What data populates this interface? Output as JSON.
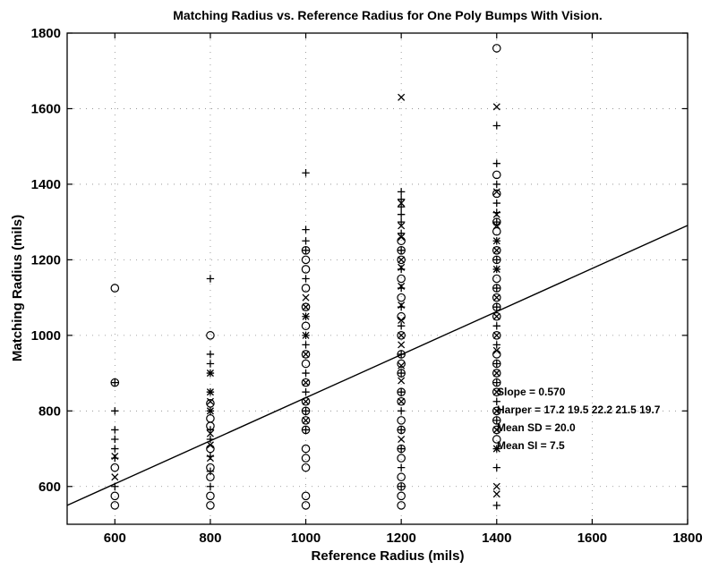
{
  "chart_data": {
    "type": "scatter",
    "title": "Matching Radius vs. Reference Radius for One Poly Bumps With Vision.",
    "xlabel": "Reference Radius (mils)",
    "ylabel": "Matching Radius (mils)",
    "xlim": [
      500,
      1800
    ],
    "ylim": [
      500,
      1800
    ],
    "xticks": [
      600,
      800,
      1000,
      1200,
      1400,
      1600,
      1800
    ],
    "yticks": [
      600,
      800,
      1000,
      1200,
      1400,
      1600,
      1800
    ],
    "grid": "dotted",
    "legend": "none",
    "fit_line": {
      "slope": 0.57,
      "intercept": 265,
      "x_range": [
        500,
        1800
      ]
    },
    "annotations": [
      "Slope = 0.570",
      "Harper = 17.2 19.5 22.2 21.5 19.7",
      "Mean SD = 20.0",
      "Mean SI = 7.5"
    ],
    "series": [
      {
        "marker": "circle",
        "points": [
          [
            600,
            1125
          ],
          [
            600,
            875
          ],
          [
            600,
            650
          ],
          [
            600,
            575
          ],
          [
            600,
            550
          ],
          [
            800,
            1000
          ],
          [
            800,
            820
          ],
          [
            800,
            780
          ],
          [
            800,
            760
          ],
          [
            800,
            700
          ],
          [
            800,
            650
          ],
          [
            800,
            625
          ],
          [
            800,
            575
          ],
          [
            800,
            550
          ],
          [
            1000,
            1225
          ],
          [
            1000,
            1200
          ],
          [
            1000,
            1175
          ],
          [
            1000,
            1125
          ],
          [
            1000,
            1075
          ],
          [
            1000,
            1025
          ],
          [
            1000,
            950
          ],
          [
            1000,
            925
          ],
          [
            1000,
            875
          ],
          [
            1000,
            825
          ],
          [
            1000,
            800
          ],
          [
            1000,
            775
          ],
          [
            1000,
            750
          ],
          [
            1000,
            700
          ],
          [
            1000,
            675
          ],
          [
            1000,
            650
          ],
          [
            1000,
            575
          ],
          [
            1000,
            550
          ],
          [
            1200,
            1250
          ],
          [
            1200,
            1225
          ],
          [
            1200,
            1200
          ],
          [
            1200,
            1150
          ],
          [
            1200,
            1100
          ],
          [
            1200,
            1050
          ],
          [
            1200,
            1000
          ],
          [
            1200,
            950
          ],
          [
            1200,
            925
          ],
          [
            1200,
            900
          ],
          [
            1200,
            850
          ],
          [
            1200,
            825
          ],
          [
            1200,
            775
          ],
          [
            1200,
            750
          ],
          [
            1200,
            700
          ],
          [
            1200,
            675
          ],
          [
            1200,
            625
          ],
          [
            1200,
            600
          ],
          [
            1200,
            575
          ],
          [
            1200,
            550
          ],
          [
            1400,
            1760
          ],
          [
            1400,
            1425
          ],
          [
            1400,
            1375
          ],
          [
            1400,
            1300
          ],
          [
            1400,
            1275
          ],
          [
            1400,
            1225
          ],
          [
            1400,
            1200
          ],
          [
            1400,
            1150
          ],
          [
            1400,
            1125
          ],
          [
            1400,
            1100
          ],
          [
            1400,
            1075
          ],
          [
            1400,
            1050
          ],
          [
            1400,
            1000
          ],
          [
            1400,
            950
          ],
          [
            1400,
            925
          ],
          [
            1400,
            900
          ],
          [
            1400,
            875
          ],
          [
            1400,
            850
          ],
          [
            1400,
            800
          ],
          [
            1400,
            775
          ],
          [
            1400,
            750
          ],
          [
            1400,
            725
          ]
        ]
      },
      {
        "marker": "plus",
        "points": [
          [
            600,
            875
          ],
          [
            600,
            800
          ],
          [
            600,
            750
          ],
          [
            600,
            725
          ],
          [
            600,
            700
          ],
          [
            600,
            675
          ],
          [
            600,
            600
          ],
          [
            800,
            1150
          ],
          [
            800,
            950
          ],
          [
            800,
            925
          ],
          [
            800,
            900
          ],
          [
            800,
            850
          ],
          [
            800,
            800
          ],
          [
            800,
            750
          ],
          [
            800,
            725
          ],
          [
            800,
            680
          ],
          [
            800,
            640
          ],
          [
            800,
            600
          ],
          [
            1000,
            1430
          ],
          [
            1000,
            1280
          ],
          [
            1000,
            1250
          ],
          [
            1000,
            1225
          ],
          [
            1000,
            1150
          ],
          [
            1000,
            1050
          ],
          [
            1000,
            1000
          ],
          [
            1000,
            975
          ],
          [
            1000,
            900
          ],
          [
            1000,
            850
          ],
          [
            1000,
            800
          ],
          [
            1000,
            750
          ],
          [
            1200,
            1380
          ],
          [
            1200,
            1360
          ],
          [
            1200,
            1340
          ],
          [
            1200,
            1320
          ],
          [
            1200,
            1300
          ],
          [
            1200,
            1270
          ],
          [
            1200,
            1225
          ],
          [
            1200,
            1175
          ],
          [
            1200,
            1125
          ],
          [
            1200,
            1075
          ],
          [
            1200,
            1025
          ],
          [
            1200,
            950
          ],
          [
            1200,
            900
          ],
          [
            1200,
            850
          ],
          [
            1200,
            800
          ],
          [
            1200,
            750
          ],
          [
            1200,
            700
          ],
          [
            1200,
            650
          ],
          [
            1200,
            600
          ],
          [
            1400,
            1555
          ],
          [
            1400,
            1455
          ],
          [
            1400,
            1400
          ],
          [
            1400,
            1350
          ],
          [
            1400,
            1325
          ],
          [
            1400,
            1300
          ],
          [
            1400,
            1250
          ],
          [
            1400,
            1200
          ],
          [
            1400,
            1175
          ],
          [
            1400,
            1125
          ],
          [
            1400,
            1075
          ],
          [
            1400,
            1025
          ],
          [
            1400,
            975
          ],
          [
            1400,
            925
          ],
          [
            1400,
            875
          ],
          [
            1400,
            825
          ],
          [
            1400,
            775
          ],
          [
            1400,
            700
          ],
          [
            1400,
            650
          ],
          [
            1400,
            550
          ]
        ]
      },
      {
        "marker": "x",
        "points": [
          [
            600,
            680
          ],
          [
            600,
            625
          ],
          [
            800,
            900
          ],
          [
            800,
            850
          ],
          [
            800,
            825
          ],
          [
            800,
            800
          ],
          [
            800,
            740
          ],
          [
            800,
            710
          ],
          [
            800,
            675
          ],
          [
            1000,
            1100
          ],
          [
            1000,
            1075
          ],
          [
            1000,
            1050
          ],
          [
            1000,
            1000
          ],
          [
            1000,
            950
          ],
          [
            1000,
            875
          ],
          [
            1000,
            825
          ],
          [
            1000,
            775
          ],
          [
            1200,
            1630
          ],
          [
            1200,
            1350
          ],
          [
            1200,
            1290
          ],
          [
            1200,
            1260
          ],
          [
            1200,
            1200
          ],
          [
            1200,
            1180
          ],
          [
            1200,
            1130
          ],
          [
            1200,
            1080
          ],
          [
            1200,
            1040
          ],
          [
            1200,
            1000
          ],
          [
            1200,
            975
          ],
          [
            1200,
            920
          ],
          [
            1200,
            880
          ],
          [
            1200,
            825
          ],
          [
            1200,
            725
          ],
          [
            1400,
            1605
          ],
          [
            1400,
            1380
          ],
          [
            1400,
            1320
          ],
          [
            1400,
            1290
          ],
          [
            1400,
            1250
          ],
          [
            1400,
            1225
          ],
          [
            1400,
            1175
          ],
          [
            1400,
            1100
          ],
          [
            1400,
            1050
          ],
          [
            1400,
            1000
          ],
          [
            1400,
            960
          ],
          [
            1400,
            900
          ],
          [
            1400,
            850
          ],
          [
            1400,
            800
          ],
          [
            1400,
            750
          ],
          [
            1400,
            700
          ],
          [
            1400,
            600
          ],
          [
            1400,
            580
          ]
        ]
      }
    ]
  }
}
